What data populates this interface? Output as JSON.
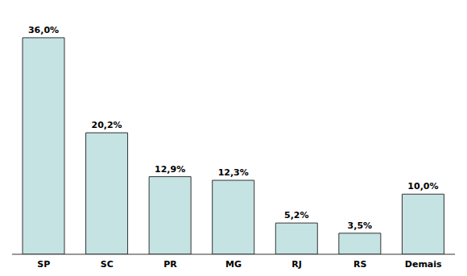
{
  "chart_data": {
    "type": "bar",
    "categories": [
      "SP",
      "SC",
      "PR",
      "MG",
      "RJ",
      "RS",
      "Demais"
    ],
    "values": [
      36.0,
      20.2,
      12.9,
      12.3,
      5.2,
      3.5,
      10.0
    ],
    "value_labels": [
      "36,0%",
      "20,2%",
      "12,9%",
      "12,3%",
      "5,2%",
      "3,5%",
      "10,0%"
    ],
    "data_labels": true,
    "color": "#c5e3e3",
    "ylim": [
      0,
      40
    ],
    "tick_labels": "x",
    "grid": false
  }
}
